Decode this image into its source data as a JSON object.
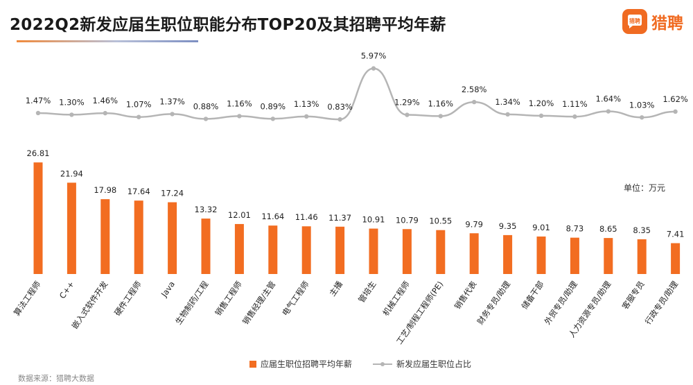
{
  "title": "2022Q2新发应届生职位职能分布TOP20及其招聘平均年薪",
  "logo": {
    "text": "猎聘",
    "icon": "liepin-chat-logo-icon"
  },
  "unit_label": "单位：万元",
  "source": "数据来源：猎聘大数据",
  "colors": {
    "bar": "#f26d21",
    "line": "#b5b5b5",
    "accent": "#f06b22"
  },
  "legend": {
    "bar_label": "应届生职位招聘平均年薪",
    "line_label": "新发应届生职位占比"
  },
  "chart_data": {
    "type": "bar",
    "categories": [
      "算法工程师",
      "C++",
      "嵌入式软件开发",
      "硬件工程师",
      "Java",
      "生物制药/工程",
      "销售工程师",
      "销售经理/主管",
      "电气工程师",
      "主播",
      "管培生",
      "机械工程师",
      "工艺/制程工程师(PE)",
      "销售代表",
      "财务专员/助理",
      "储备干部",
      "外贸专员/助理",
      "人力资源专员/助理",
      "客服专员",
      "行政专员/助理"
    ],
    "series": [
      {
        "name": "应届生职位招聘平均年薪",
        "type": "bar",
        "values": [
          26.81,
          21.94,
          17.98,
          17.64,
          17.24,
          13.32,
          12.01,
          11.64,
          11.46,
          11.37,
          10.91,
          10.79,
          10.55,
          9.79,
          9.35,
          9.01,
          8.73,
          8.65,
          8.35,
          7.41
        ],
        "labels": [
          "26.81",
          "21.94",
          "17.98",
          "17.64",
          "17.24",
          "13.32",
          "12.01",
          "11.64",
          "11.46",
          "11.37",
          "10.91",
          "10.79",
          "10.55",
          "9.79",
          "9.35",
          "9.01",
          "8.73",
          "8.65",
          "8.35",
          "7.41"
        ]
      },
      {
        "name": "新发应届生职位占比",
        "type": "line",
        "values": [
          1.47,
          1.3,
          1.46,
          1.07,
          1.37,
          0.88,
          1.16,
          0.89,
          1.13,
          0.83,
          5.97,
          1.29,
          1.16,
          2.58,
          1.34,
          1.2,
          1.11,
          1.64,
          1.03,
          1.62
        ],
        "labels": [
          "1.47%",
          "1.30%",
          "1.46%",
          "1.07%",
          "1.37%",
          "0.88%",
          "1.16%",
          "0.89%",
          "1.13%",
          "0.83%",
          "5.97%",
          "1.29%",
          "1.16%",
          "2.58%",
          "1.34%",
          "1.20%",
          "1.11%",
          "1.64%",
          "1.03%",
          "1.62%"
        ],
        "unit": "%"
      }
    ],
    "bar_axis_range": [
      0,
      30
    ],
    "line_axis_range": [
      0,
      6
    ],
    "grid": false,
    "axis_lines": false,
    "legend_position": "bottom"
  }
}
